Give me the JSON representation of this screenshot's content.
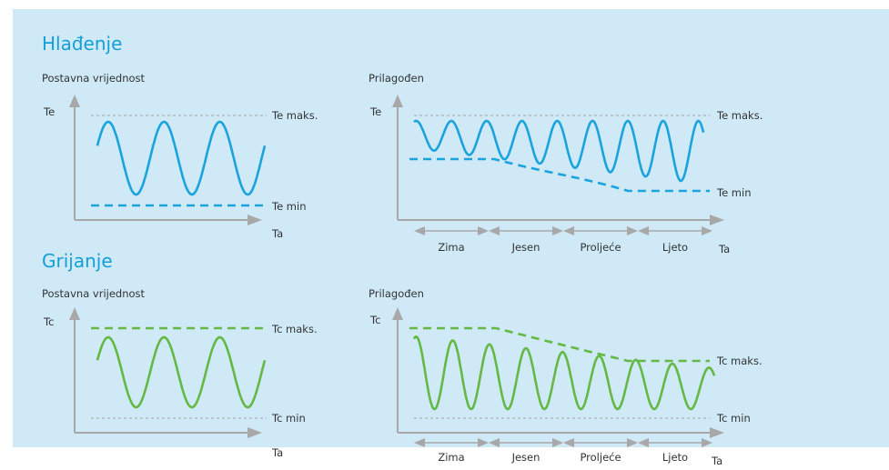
{
  "colors": {
    "background_panel": "#cfe9f7",
    "heading": "#149fd9",
    "cooling_curve": "#1aa3dd",
    "heating_curve": "#63b944",
    "axis": "#a8a8a8"
  },
  "cooling": {
    "heading": "Hlađenje",
    "default_chart": {
      "subtitle": "Postavna vrijednost",
      "y_label": "Te",
      "x_label": "Ta",
      "max_label": "Te maks.",
      "min_label": "Te min"
    },
    "adjusted_chart": {
      "subtitle": "Prilagođen",
      "y_label": "Te",
      "x_label": "Ta",
      "max_label": "Te maks.",
      "min_label": "Te min",
      "seasons": [
        "Zima",
        "Jesen",
        "Proljeće",
        "Ljeto"
      ]
    }
  },
  "heating": {
    "heading": "Grijanje",
    "default_chart": {
      "subtitle": "Postavna vrijednost",
      "y_label": "Tc",
      "x_label": "Ta",
      "max_label": "Tc maks.",
      "min_label": "Tc min"
    },
    "adjusted_chart": {
      "subtitle": "Prilagođen",
      "y_label": "Tc",
      "x_label": "Ta",
      "max_label": "Tc maks.",
      "min_label": "Tc min",
      "seasons": [
        "Zima",
        "Jesen",
        "Proljeće",
        "Ljeto"
      ]
    }
  }
}
